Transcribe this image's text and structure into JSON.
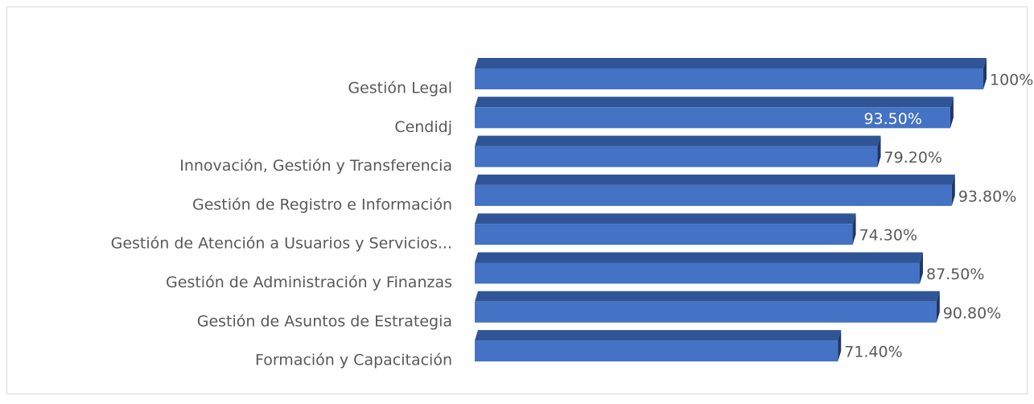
{
  "chart_data": {
    "type": "bar",
    "orientation": "horizontal",
    "categories": [
      "Gestión Legal",
      "Cendidj",
      "Innovación, Gestión y Transferencia",
      "Gestión de Registro e Información",
      "Gestión de Atención a Usuarios y Servicios...",
      "Gestión de Administración y Finanzas",
      "Gestión de Asuntos de Estrategia",
      "Formación y Capacitación"
    ],
    "values": [
      100,
      93.5,
      79.2,
      93.8,
      74.3,
      87.5,
      90.8,
      71.4
    ],
    "value_labels": [
      "100%",
      "93.50%",
      "79.20%",
      "93.80%",
      "74.30%",
      "87.50%",
      "90.80%",
      "71.40%"
    ],
    "label_positions": [
      "outside",
      "inside",
      "outside",
      "outside",
      "outside",
      "outside",
      "outside",
      "outside"
    ],
    "color": "#4472c4",
    "xlim": [
      0,
      100
    ]
  }
}
